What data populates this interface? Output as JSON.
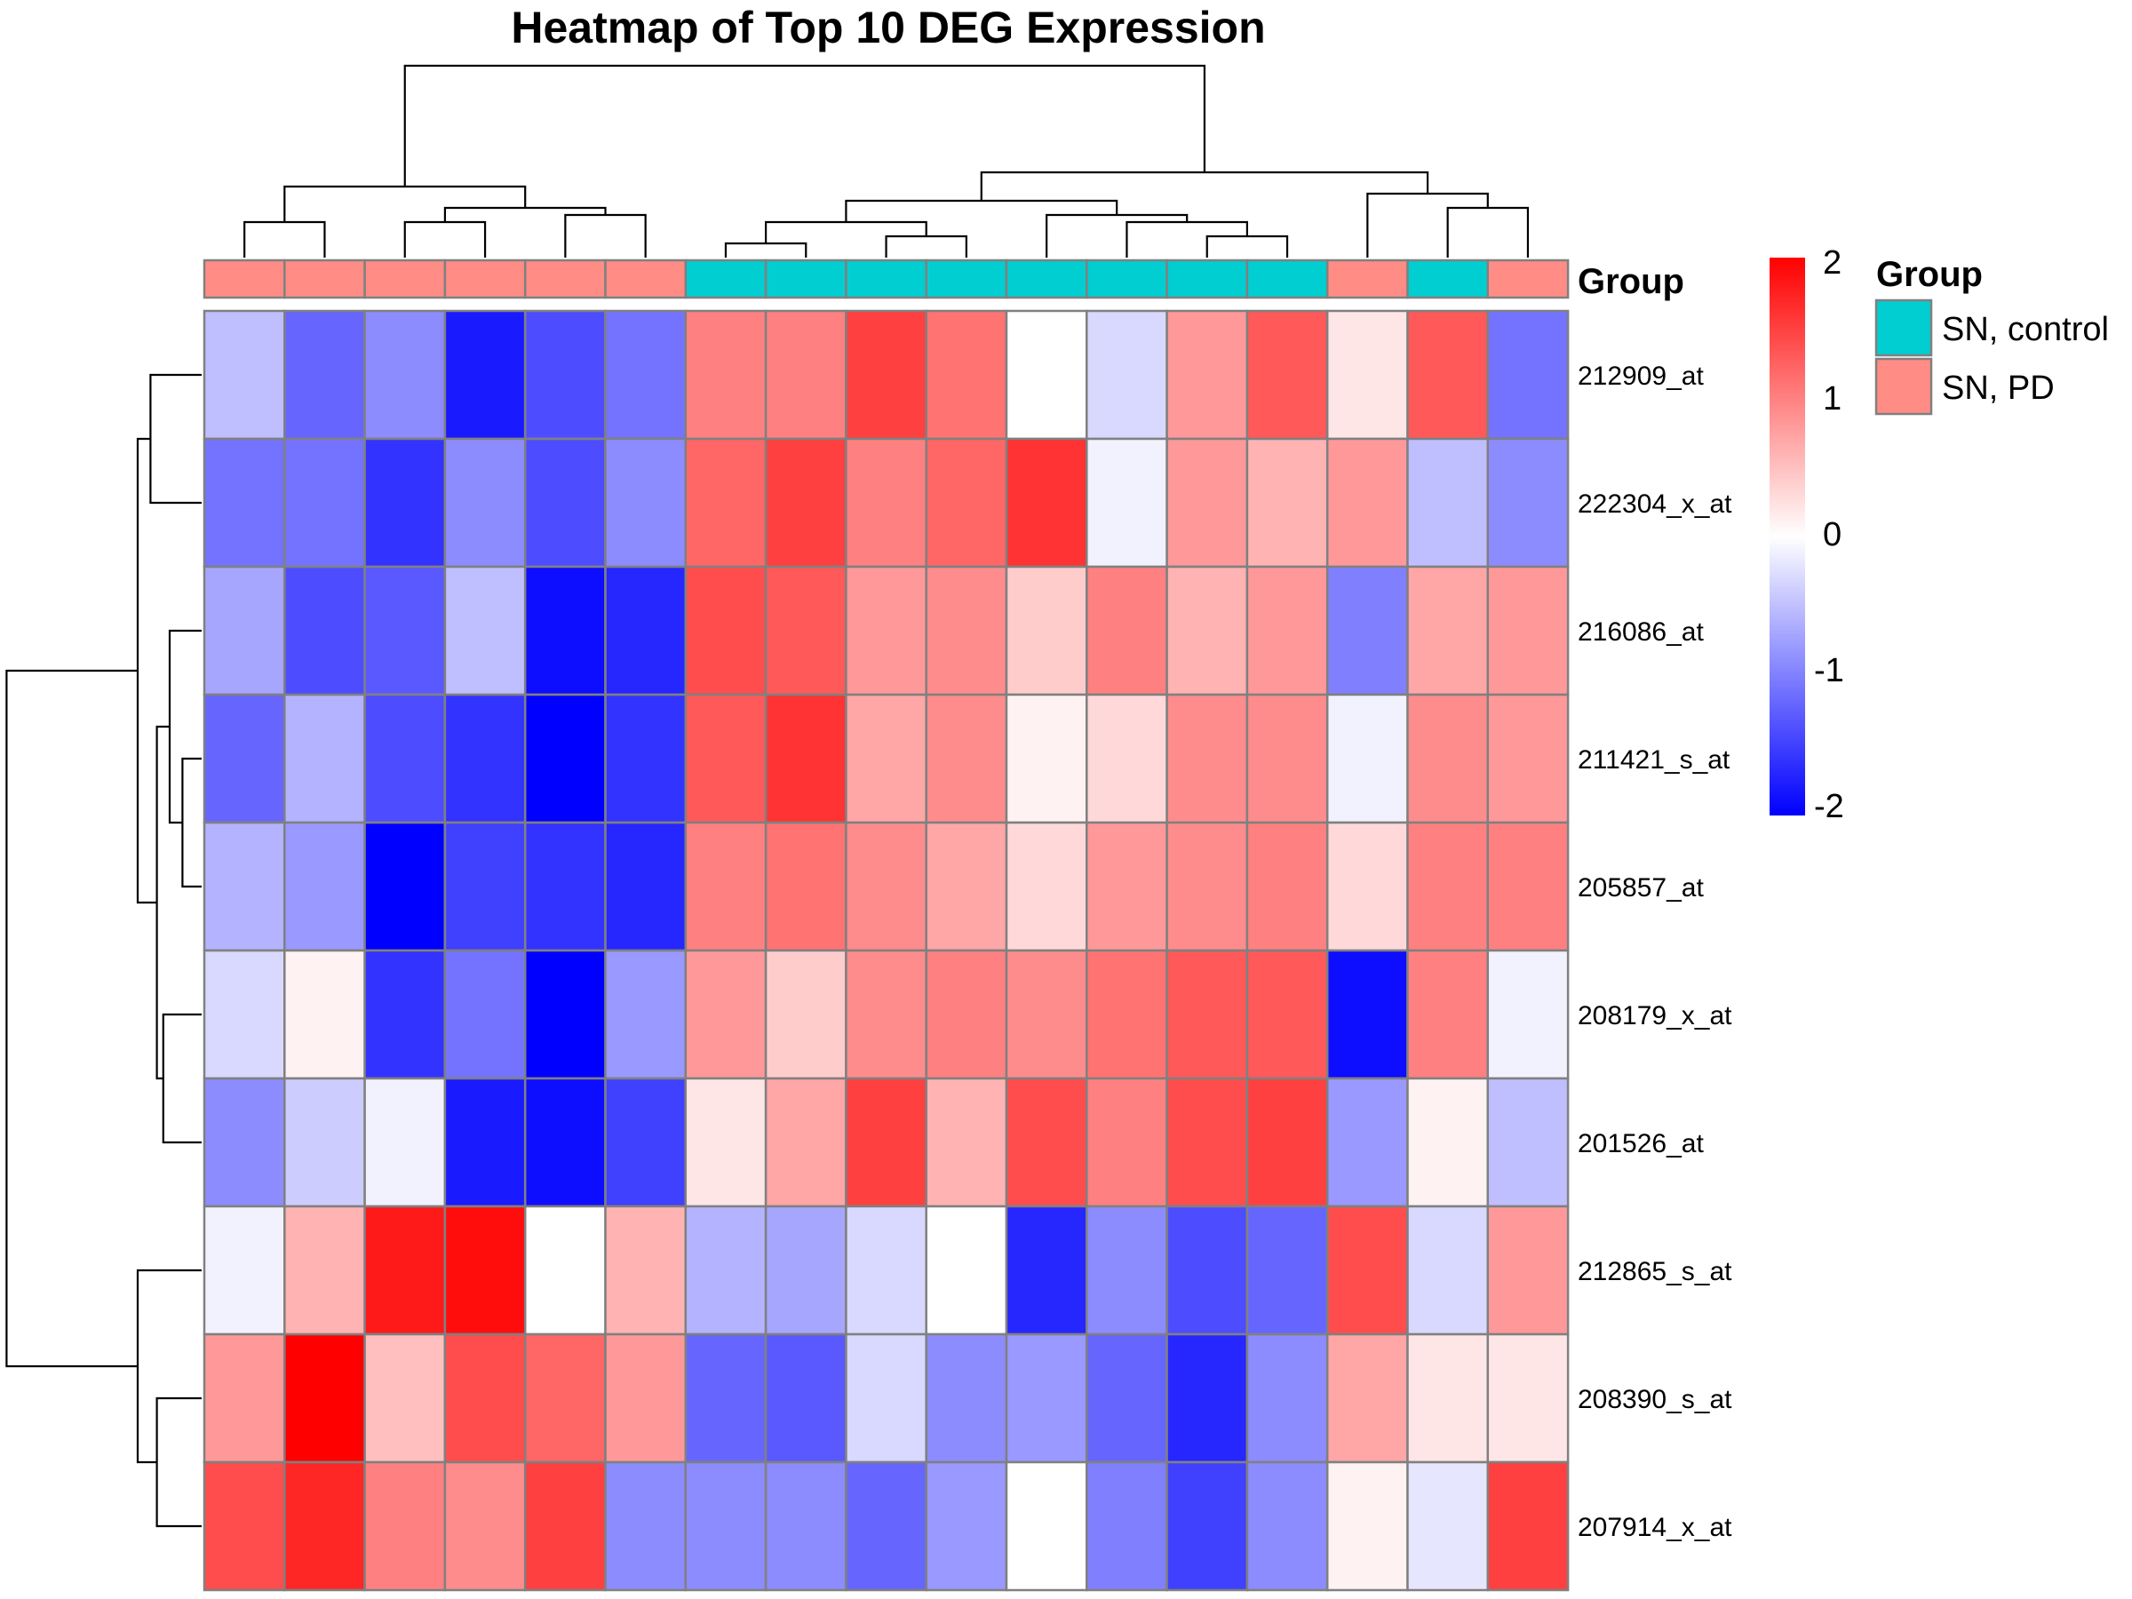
{
  "chart_data": {
    "type": "heatmap",
    "title": "Heatmap of Top 10 DEG Expression",
    "rows": [
      "212909_at",
      "222304_x_at",
      "216086_at",
      "211421_s_at",
      "205857_at",
      "208179_x_at",
      "201526_at",
      "212865_s_at",
      "208390_s_at",
      "207914_x_at"
    ],
    "column_groups": [
      "SN, PD",
      "SN, PD",
      "SN, PD",
      "SN, PD",
      "SN, PD",
      "SN, PD",
      "SN, control",
      "SN, control",
      "SN, control",
      "SN, control",
      "SN, control",
      "SN, control",
      "SN, control",
      "SN, control",
      "SN, PD",
      "SN, control",
      "SN, PD"
    ],
    "values": [
      [
        -0.5,
        -1.2,
        -0.9,
        -1.8,
        -1.4,
        -1.1,
        1.0,
        1.0,
        1.5,
        1.1,
        0.0,
        -0.3,
        0.8,
        1.3,
        0.2,
        1.3,
        -1.1
      ],
      [
        -1.1,
        -1.1,
        -1.6,
        -0.9,
        -1.4,
        -0.9,
        1.2,
        1.5,
        1.0,
        1.2,
        1.6,
        -0.1,
        0.8,
        0.6,
        0.8,
        -0.5,
        -0.9
      ],
      [
        -0.7,
        -1.4,
        -1.3,
        -0.5,
        -1.9,
        -1.7,
        1.4,
        1.3,
        0.8,
        0.9,
        0.4,
        1.0,
        0.6,
        0.8,
        -1.0,
        0.7,
        0.8
      ],
      [
        -1.2,
        -0.6,
        -1.4,
        -1.6,
        -2.0,
        -1.6,
        1.3,
        1.6,
        0.7,
        0.9,
        0.1,
        0.3,
        0.9,
        0.9,
        -0.1,
        0.9,
        0.8
      ],
      [
        -0.6,
        -0.8,
        -2.0,
        -1.5,
        -1.6,
        -1.7,
        1.0,
        1.1,
        0.9,
        0.7,
        0.3,
        0.8,
        0.9,
        1.0,
        0.3,
        1.0,
        1.0
      ],
      [
        -0.3,
        0.1,
        -1.6,
        -1.1,
        -2.0,
        -0.8,
        0.8,
        0.4,
        0.9,
        1.0,
        0.9,
        1.1,
        1.3,
        1.3,
        -1.9,
        1.0,
        -0.1
      ],
      [
        -0.9,
        -0.4,
        -0.1,
        -1.8,
        -1.9,
        -1.5,
        0.2,
        0.7,
        1.5,
        0.6,
        1.4,
        1.0,
        1.4,
        1.5,
        -0.8,
        0.1,
        -0.5
      ],
      [
        -0.1,
        0.6,
        1.8,
        1.9,
        0.0,
        0.6,
        -0.6,
        -0.7,
        -0.3,
        0.0,
        -1.7,
        -0.9,
        -1.4,
        -1.2,
        1.4,
        -0.3,
        0.8
      ],
      [
        0.8,
        2.0,
        0.5,
        1.4,
        1.2,
        0.8,
        -1.2,
        -1.3,
        -0.3,
        -0.9,
        -0.8,
        -1.2,
        -1.7,
        -0.9,
        0.7,
        0.2,
        0.2
      ],
      [
        1.4,
        1.7,
        1.0,
        0.9,
        1.5,
        -0.9,
        -0.9,
        -0.9,
        -1.2,
        -0.8,
        0.0,
        -1.0,
        -1.5,
        -0.9,
        0.1,
        -0.2,
        1.5
      ]
    ],
    "color_scale": {
      "min": -2,
      "max": 2,
      "low": "#0000FF",
      "mid": "#FFFFFF",
      "high": "#FF0000",
      "ticks": [
        "2",
        "1",
        "0",
        "-1",
        "-2"
      ]
    },
    "annotation": {
      "label": "Group",
      "legend_title": "Group",
      "levels": [
        {
          "name": "SN, control",
          "color": "#00CED1"
        },
        {
          "name": "SN, PD",
          "color": "#FF8C85"
        }
      ]
    },
    "column_dendrogram": true,
    "row_dendrogram": true,
    "cell_border": "#808080"
  }
}
